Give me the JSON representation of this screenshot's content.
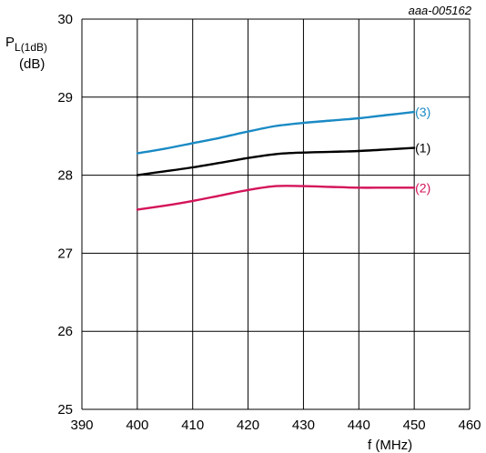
{
  "chart_data": {
    "type": "line",
    "figure_code": "aaa-005162",
    "ylabel_main": "P",
    "ylabel_sub": "L(1dB)",
    "ylabel_unit": "(dB)",
    "xlabel": "f (MHz)",
    "xlim": [
      390,
      460
    ],
    "ylim": [
      25,
      30
    ],
    "xticks": [
      "390",
      "400",
      "410",
      "420",
      "430",
      "440",
      "450",
      "460"
    ],
    "yticks": [
      "25",
      "26",
      "27",
      "28",
      "29",
      "30"
    ],
    "grid": true,
    "series": [
      {
        "name": "(3)",
        "color": "#1a8ac4",
        "x": [
          400,
          405,
          410,
          415,
          420,
          425,
          430,
          435,
          440,
          445,
          450
        ],
        "y": [
          28.28,
          28.34,
          28.41,
          28.48,
          28.56,
          28.63,
          28.67,
          28.7,
          28.73,
          28.77,
          28.81
        ]
      },
      {
        "name": "(1)",
        "color": "#000000",
        "x": [
          400,
          405,
          410,
          415,
          420,
          425,
          430,
          435,
          440,
          445,
          450
        ],
        "y": [
          28.0,
          28.05,
          28.1,
          28.16,
          28.22,
          28.27,
          28.29,
          28.3,
          28.31,
          28.33,
          28.35
        ]
      },
      {
        "name": "(2)",
        "color": "#d4145a",
        "x": [
          400,
          405,
          410,
          415,
          420,
          425,
          430,
          435,
          440,
          445,
          450
        ],
        "y": [
          27.56,
          27.61,
          27.67,
          27.74,
          27.81,
          27.86,
          27.86,
          27.85,
          27.84,
          27.84,
          27.84
        ]
      }
    ]
  }
}
